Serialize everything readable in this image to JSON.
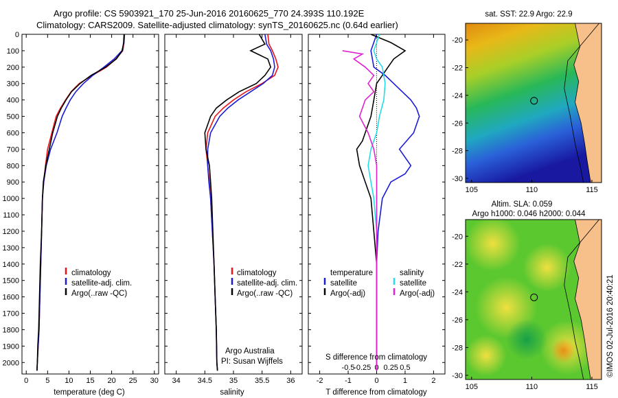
{
  "header": {
    "line1": "Argo profile: CS 5903921_170 25-Jun-2016 20160625_770 24.393S 110.192E",
    "line2": "Climatology: CARS2009. Satellite-adjusted climatology: synTS_20160625.nc (0.64d earlier)"
  },
  "side_label": "©IMOS 02-Jul-2016 20:40:21",
  "chart_data": [
    {
      "type": "line",
      "id": "temperature",
      "xlabel": "temperature (deg C)",
      "ylabel": "",
      "xlim": [
        -1,
        31
      ],
      "ylim": [
        2070,
        0
      ],
      "xticks": [
        0,
        5,
        10,
        15,
        20,
        25,
        30
      ],
      "yticks": [
        0,
        100,
        200,
        300,
        400,
        500,
        600,
        700,
        800,
        900,
        1000,
        1100,
        1200,
        1300,
        1400,
        1500,
        1600,
        1700,
        1800,
        1900,
        2000
      ],
      "legend": [
        "climatology",
        "satellite-adj. clim.",
        "Argo(..raw -QC)"
      ],
      "series": [
        {
          "name": "climatology",
          "color": "#e8141a",
          "x": [
            23.0,
            22.9,
            22.6,
            21.0,
            18.8,
            15.5,
            12.4,
            10.5,
            9.2,
            8.0,
            7.0,
            6.0,
            5.0,
            4.5,
            4.1,
            3.8,
            3.6,
            3.4,
            3.2,
            3.0,
            2.8,
            2.6,
            2.5
          ],
          "y": [
            0,
            50,
            100,
            150,
            200,
            250,
            300,
            350,
            400,
            450,
            500,
            600,
            700,
            800,
            900,
            1000,
            1200,
            1400,
            1600,
            1800,
            1900,
            2000,
            2050
          ]
        },
        {
          "name": "satellite-adj. clim.",
          "color": "#1a1ad6",
          "x": [
            23.0,
            22.9,
            22.4,
            20.6,
            18.2,
            15.6,
            13.4,
            11.6,
            10.3,
            9.3,
            8.4,
            7.2,
            5.7,
            4.7,
            4.1,
            3.8,
            3.6,
            3.4,
            3.2,
            3.0,
            2.8,
            2.6,
            2.5
          ],
          "y": [
            0,
            50,
            100,
            150,
            200,
            250,
            300,
            350,
            400,
            450,
            500,
            600,
            700,
            800,
            900,
            1000,
            1200,
            1400,
            1600,
            1800,
            1900,
            2000,
            2050
          ]
        },
        {
          "name": "Argo(..raw -QC)",
          "color": "#000000",
          "x": [
            22.9,
            22.8,
            22.5,
            21.1,
            18.6,
            15.2,
            12.6,
            10.6,
            9.3,
            8.2,
            7.3,
            6.2,
            5.4,
            4.6,
            4.0,
            3.8,
            3.6,
            3.3,
            3.1,
            2.9,
            2.7,
            2.6,
            2.5
          ],
          "y": [
            0,
            50,
            100,
            150,
            200,
            250,
            300,
            350,
            400,
            450,
            500,
            600,
            700,
            800,
            900,
            1000,
            1200,
            1400,
            1600,
            1800,
            1900,
            2000,
            2050
          ]
        }
      ]
    },
    {
      "type": "line",
      "id": "salinity",
      "xlabel": "salinity",
      "xlim": [
        33.8,
        36.2
      ],
      "ylim": [
        2070,
        0
      ],
      "xticks": [
        34,
        34.5,
        35,
        35.5,
        36
      ],
      "legend": [
        "climatology",
        "satellite-adj. clim.",
        "Argo(..raw -QC)"
      ],
      "annotation": [
        "Argo Australia",
        "PI: Susan Wijffels"
      ],
      "series": [
        {
          "name": "climatology",
          "color": "#e8141a",
          "x": [
            35.6,
            35.62,
            35.68,
            35.74,
            35.78,
            35.72,
            35.5,
            35.22,
            35.0,
            34.82,
            34.68,
            34.55,
            34.52,
            34.55,
            34.58,
            34.6,
            34.63,
            34.66,
            34.68,
            34.7,
            34.71,
            34.72
          ],
          "y": [
            0,
            60,
            100,
            150,
            200,
            250,
            300,
            350,
            400,
            450,
            500,
            600,
            700,
            800,
            900,
            1000,
            1200,
            1400,
            1600,
            1800,
            2000,
            2050
          ]
        },
        {
          "name": "satellite-adj. clim.",
          "color": "#1a1ad6",
          "x": [
            35.55,
            35.58,
            35.65,
            35.7,
            35.72,
            35.68,
            35.52,
            35.3,
            35.08,
            34.9,
            34.76,
            34.6,
            34.55,
            34.55,
            34.57,
            34.6,
            34.63,
            34.66,
            34.68,
            34.7,
            34.71,
            34.72
          ],
          "y": [
            0,
            60,
            100,
            150,
            200,
            250,
            300,
            350,
            400,
            450,
            500,
            600,
            700,
            800,
            900,
            1000,
            1200,
            1400,
            1600,
            1800,
            2000,
            2050
          ]
        },
        {
          "name": "Argo(..raw -QC)",
          "color": "#000000",
          "x": [
            35.45,
            35.55,
            35.3,
            35.6,
            35.65,
            35.55,
            35.4,
            35.1,
            34.88,
            34.7,
            34.6,
            34.5,
            34.52,
            34.58,
            34.6,
            34.62,
            34.64,
            34.66,
            34.68,
            34.7,
            34.71,
            34.72
          ],
          "y": [
            0,
            60,
            100,
            150,
            200,
            250,
            300,
            350,
            400,
            450,
            500,
            600,
            700,
            800,
            900,
            1000,
            1200,
            1400,
            1600,
            1800,
            2000,
            2050
          ]
        }
      ]
    },
    {
      "type": "line",
      "id": "difference",
      "xlabel": "T difference from climatology",
      "xlabel_top": "S difference from climatology",
      "xlim": [
        -2.4,
        2.4
      ],
      "ylim": [
        2070,
        0
      ],
      "xticks": [
        -2,
        -1,
        0,
        1,
        2
      ],
      "xticks_s": [
        "-0.5",
        "-0.25",
        "0",
        "0.25",
        "0.5"
      ],
      "legend_left_title": "temperature",
      "legend_right_title": "salinity",
      "legend": [
        "satellite",
        "Argo(-adj)",
        "satellite",
        "Argo(-adj)"
      ],
      "series": [
        {
          "name": "satellite",
          "kind": "temperature",
          "color": "#1a1ad6",
          "x": [
            0.0,
            -0.2,
            -0.1,
            0.3,
            0.6,
            0.9,
            1.2,
            1.4,
            1.5,
            1.3,
            0.8,
            1.2,
            1.0,
            0.5,
            0.2,
            0.05,
            0.0,
            0.0,
            0.0,
            0.0
          ],
          "y": [
            0,
            100,
            200,
            250,
            300,
            350,
            400,
            450,
            500,
            600,
            700,
            800,
            850,
            900,
            1000,
            1200,
            1400,
            1600,
            1800,
            2050
          ]
        },
        {
          "name": "Argo(-adj)",
          "kind": "temperature",
          "color": "#000000",
          "x": [
            -0.2,
            0.5,
            1.0,
            0.6,
            0.4,
            0.2,
            0.0,
            -0.1,
            -0.2,
            -0.4,
            -0.5,
            -0.7,
            -0.6,
            -0.4,
            -0.2,
            -0.1,
            0.0,
            0.0,
            0.0,
            0.0
          ],
          "y": [
            0,
            50,
            100,
            150,
            200,
            250,
            300,
            400,
            500,
            600,
            650,
            700,
            800,
            900,
            1000,
            1200,
            1400,
            1600,
            1800,
            2050
          ]
        },
        {
          "name": "satellite",
          "kind": "salinity",
          "color": "#22dde8",
          "x": [
            0.1,
            -0.1,
            0.0,
            0.2,
            0.3,
            0.25,
            0.1,
            0.0,
            -0.2,
            -0.3,
            -0.2,
            -0.1,
            0.0,
            0.0,
            0.0,
            0.0
          ],
          "y": [
            0,
            100,
            150,
            200,
            300,
            400,
            500,
            600,
            700,
            800,
            900,
            1000,
            1200,
            1500,
            1800,
            2050
          ]
        },
        {
          "name": "Argo(-adj)",
          "kind": "salinity",
          "color": "#e020d0",
          "x": [
            -1.2,
            -0.5,
            -0.8,
            -0.4,
            -0.1,
            -0.3,
            -0.1,
            -0.4,
            -0.6,
            -0.3,
            -0.1,
            0.0,
            0.0,
            0.0,
            0.0
          ],
          "y": [
            100,
            120,
            150,
            200,
            250,
            300,
            350,
            400,
            500,
            600,
            700,
            800,
            1000,
            1500,
            2050
          ]
        }
      ]
    },
    {
      "type": "heatmap",
      "id": "sst-map",
      "title": "sat. SST: 22.9 Argo: 22.9",
      "xlim": [
        104.5,
        115.8
      ],
      "ylim": [
        -30.3,
        -18.8
      ],
      "xticks": [
        105,
        110,
        115
      ],
      "yticks": [
        -20,
        -22,
        -24,
        -26,
        -28,
        -30
      ],
      "marker": {
        "lon": 110.192,
        "lat": -24.393
      }
    },
    {
      "type": "heatmap",
      "id": "sla-map",
      "title": "Altim. SLA: 0.059",
      "subtitle": "Argo h1000: 0.046 h2000: 0.044",
      "xlim": [
        104.5,
        115.8
      ],
      "ylim": [
        -30.3,
        -18.8
      ],
      "xticks": [
        105,
        110,
        115
      ],
      "yticks": [
        -20,
        -22,
        -24,
        -26,
        -28,
        -30
      ],
      "marker": {
        "lon": 110.192,
        "lat": -24.393
      }
    }
  ]
}
